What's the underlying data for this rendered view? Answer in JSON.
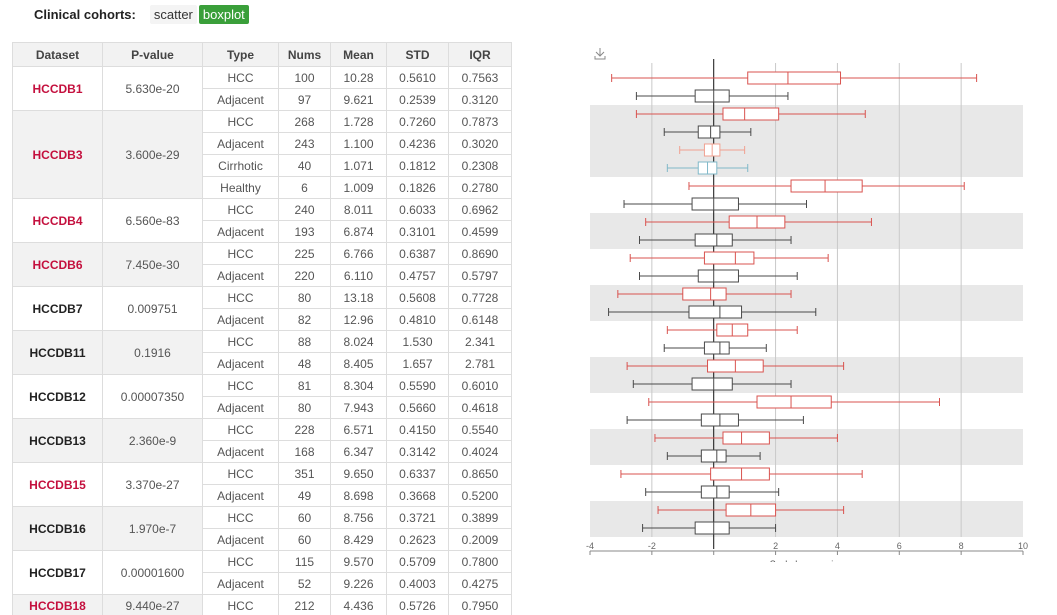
{
  "header": {
    "label": "Clinical cohorts:",
    "views": [
      {
        "label": "scatter",
        "active": false
      },
      {
        "label": "boxplot",
        "active": true
      }
    ]
  },
  "table": {
    "columns": [
      "Dataset",
      "P-value",
      "Type",
      "Nums",
      "Mean",
      "STD",
      "IQR"
    ],
    "groups": [
      {
        "dataset": "HCCDB1",
        "highlight": true,
        "pvalue": "5.630e-20",
        "rows": [
          {
            "type": "HCC",
            "nums": "100",
            "mean": "10.28",
            "std": "0.5610",
            "iqr": "0.7563"
          },
          {
            "type": "Adjacent",
            "nums": "97",
            "mean": "9.621",
            "std": "0.2539",
            "iqr": "0.3120"
          }
        ]
      },
      {
        "dataset": "HCCDB3",
        "highlight": true,
        "pvalue": "3.600e-29",
        "rows": [
          {
            "type": "HCC",
            "nums": "268",
            "mean": "1.728",
            "std": "0.7260",
            "iqr": "0.7873"
          },
          {
            "type": "Adjacent",
            "nums": "243",
            "mean": "1.100",
            "std": "0.4236",
            "iqr": "0.3020"
          },
          {
            "type": "Cirrhotic",
            "nums": "40",
            "mean": "1.071",
            "std": "0.1812",
            "iqr": "0.2308"
          },
          {
            "type": "Healthy",
            "nums": "6",
            "mean": "1.009",
            "std": "0.1826",
            "iqr": "0.2780"
          }
        ]
      },
      {
        "dataset": "HCCDB4",
        "highlight": true,
        "pvalue": "6.560e-83",
        "rows": [
          {
            "type": "HCC",
            "nums": "240",
            "mean": "8.011",
            "std": "0.6033",
            "iqr": "0.6962"
          },
          {
            "type": "Adjacent",
            "nums": "193",
            "mean": "6.874",
            "std": "0.3101",
            "iqr": "0.4599"
          }
        ]
      },
      {
        "dataset": "HCCDB6",
        "highlight": true,
        "pvalue": "7.450e-30",
        "rows": [
          {
            "type": "HCC",
            "nums": "225",
            "mean": "6.766",
            "std": "0.6387",
            "iqr": "0.8690"
          },
          {
            "type": "Adjacent",
            "nums": "220",
            "mean": "6.110",
            "std": "0.4757",
            "iqr": "0.5797"
          }
        ]
      },
      {
        "dataset": "HCCDB7",
        "highlight": false,
        "pvalue": "0.009751",
        "rows": [
          {
            "type": "HCC",
            "nums": "80",
            "mean": "13.18",
            "std": "0.5608",
            "iqr": "0.7728"
          },
          {
            "type": "Adjacent",
            "nums": "82",
            "mean": "12.96",
            "std": "0.4810",
            "iqr": "0.6148"
          }
        ]
      },
      {
        "dataset": "HCCDB11",
        "highlight": false,
        "pvalue": "0.1916",
        "rows": [
          {
            "type": "HCC",
            "nums": "88",
            "mean": "8.024",
            "std": "1.530",
            "iqr": "2.341"
          },
          {
            "type": "Adjacent",
            "nums": "48",
            "mean": "8.405",
            "std": "1.657",
            "iqr": "2.781"
          }
        ]
      },
      {
        "dataset": "HCCDB12",
        "highlight": false,
        "pvalue": "0.00007350",
        "rows": [
          {
            "type": "HCC",
            "nums": "81",
            "mean": "8.304",
            "std": "0.5590",
            "iqr": "0.6010"
          },
          {
            "type": "Adjacent",
            "nums": "80",
            "mean": "7.943",
            "std": "0.5660",
            "iqr": "0.4618"
          }
        ]
      },
      {
        "dataset": "HCCDB13",
        "highlight": false,
        "pvalue": "2.360e-9",
        "rows": [
          {
            "type": "HCC",
            "nums": "228",
            "mean": "6.571",
            "std": "0.4150",
            "iqr": "0.5540"
          },
          {
            "type": "Adjacent",
            "nums": "168",
            "mean": "6.347",
            "std": "0.3142",
            "iqr": "0.4024"
          }
        ]
      },
      {
        "dataset": "HCCDB15",
        "highlight": true,
        "pvalue": "3.370e-27",
        "rows": [
          {
            "type": "HCC",
            "nums": "351",
            "mean": "9.650",
            "std": "0.6337",
            "iqr": "0.8650"
          },
          {
            "type": "Adjacent",
            "nums": "49",
            "mean": "8.698",
            "std": "0.3668",
            "iqr": "0.5200"
          }
        ]
      },
      {
        "dataset": "HCCDB16",
        "highlight": false,
        "pvalue": "1.970e-7",
        "rows": [
          {
            "type": "HCC",
            "nums": "60",
            "mean": "8.756",
            "std": "0.3721",
            "iqr": "0.3899"
          },
          {
            "type": "Adjacent",
            "nums": "60",
            "mean": "8.429",
            "std": "0.2623",
            "iqr": "0.2009"
          }
        ]
      },
      {
        "dataset": "HCCDB17",
        "highlight": false,
        "pvalue": "0.00001600",
        "rows": [
          {
            "type": "HCC",
            "nums": "115",
            "mean": "9.570",
            "std": "0.5709",
            "iqr": "0.7800"
          },
          {
            "type": "Adjacent",
            "nums": "52",
            "mean": "9.226",
            "std": "0.4003",
            "iqr": "0.4275"
          }
        ]
      },
      {
        "dataset": "HCCDB18",
        "highlight": true,
        "pvalue": "9.440e-27",
        "rows": [
          {
            "type": "HCC",
            "nums": "212",
            "mean": "4.436",
            "std": "0.5726",
            "iqr": "0.7950"
          }
        ]
      }
    ]
  },
  "chart_data": {
    "type": "boxplot",
    "orientation": "horizontal",
    "xlabel": "Scaled expression",
    "xlim": [
      -4,
      10
    ],
    "xticks": [
      -4,
      -2,
      0,
      2,
      4,
      6,
      8,
      10
    ],
    "xtick_labels": [
      "-4",
      "-2",
      "",
      "2",
      "4",
      "6",
      "8",
      "10"
    ],
    "reference_line": 0,
    "colors": {
      "HCC": "#d9534f",
      "Adjacent": "#4a4a4a",
      "Cirrhotic": "#f0a090",
      "Healthy": "#80b8c8",
      "band": "#e8e8e8"
    },
    "boxes": [
      {
        "dataset": "HCCDB1",
        "type": "HCC",
        "min": -3.3,
        "q1": 1.1,
        "median": 2.4,
        "q3": 4.1,
        "max": 8.5
      },
      {
        "dataset": "HCCDB1",
        "type": "Adjacent",
        "min": -2.5,
        "q1": -0.6,
        "median": 0.0,
        "q3": 0.5,
        "max": 2.4
      },
      {
        "dataset": "HCCDB3",
        "type": "HCC",
        "min": -2.5,
        "q1": 0.3,
        "median": 1.0,
        "q3": 2.1,
        "max": 4.9
      },
      {
        "dataset": "HCCDB3",
        "type": "Adjacent",
        "min": -1.6,
        "q1": -0.5,
        "median": -0.1,
        "q3": 0.2,
        "max": 1.2
      },
      {
        "dataset": "HCCDB3",
        "type": "Cirrhotic",
        "min": -1.1,
        "q1": -0.3,
        "median": -0.05,
        "q3": 0.2,
        "max": 1.0
      },
      {
        "dataset": "HCCDB3",
        "type": "Healthy",
        "min": -1.5,
        "q1": -0.5,
        "median": -0.2,
        "q3": 0.1,
        "max": 1.1
      },
      {
        "dataset": "HCCDB4",
        "type": "HCC",
        "min": -0.8,
        "q1": 2.5,
        "median": 3.6,
        "q3": 4.8,
        "max": 8.1
      },
      {
        "dataset": "HCCDB4",
        "type": "Adjacent",
        "min": -2.9,
        "q1": -0.7,
        "median": 0.0,
        "q3": 0.8,
        "max": 3.0
      },
      {
        "dataset": "HCCDB6",
        "type": "HCC",
        "min": -2.2,
        "q1": 0.5,
        "median": 1.4,
        "q3": 2.3,
        "max": 5.1
      },
      {
        "dataset": "HCCDB6",
        "type": "Adjacent",
        "min": -2.4,
        "q1": -0.6,
        "median": 0.1,
        "q3": 0.6,
        "max": 2.5
      },
      {
        "dataset": "HCCDB7",
        "type": "HCC",
        "min": -2.7,
        "q1": -0.3,
        "median": 0.7,
        "q3": 1.3,
        "max": 3.7
      },
      {
        "dataset": "HCCDB7",
        "type": "Adjacent",
        "min": -2.4,
        "q1": -0.5,
        "median": 0.0,
        "q3": 0.8,
        "max": 2.7
      },
      {
        "dataset": "HCCDB11",
        "type": "HCC",
        "min": -3.1,
        "q1": -1.0,
        "median": -0.1,
        "q3": 0.4,
        "max": 2.5
      },
      {
        "dataset": "HCCDB11",
        "type": "Adjacent",
        "min": -3.4,
        "q1": -0.8,
        "median": 0.2,
        "q3": 0.9,
        "max": 3.3
      },
      {
        "dataset": "HCCDB12",
        "type": "HCC",
        "min": -1.5,
        "q1": 0.1,
        "median": 0.6,
        "q3": 1.1,
        "max": 2.7
      },
      {
        "dataset": "HCCDB12",
        "type": "Adjacent",
        "min": -1.6,
        "q1": -0.3,
        "median": 0.2,
        "q3": 0.5,
        "max": 1.7
      },
      {
        "dataset": "HCCDB13",
        "type": "HCC",
        "min": -2.8,
        "q1": -0.2,
        "median": 0.7,
        "q3": 1.6,
        "max": 4.2
      },
      {
        "dataset": "HCCDB13",
        "type": "Adjacent",
        "min": -2.6,
        "q1": -0.7,
        "median": 0.0,
        "q3": 0.6,
        "max": 2.5
      },
      {
        "dataset": "HCCDB15",
        "type": "HCC",
        "min": -2.1,
        "q1": 1.4,
        "median": 2.5,
        "q3": 3.8,
        "max": 7.3
      },
      {
        "dataset": "HCCDB15",
        "type": "Adjacent",
        "min": -2.8,
        "q1": -0.4,
        "median": 0.2,
        "q3": 0.8,
        "max": 2.9
      },
      {
        "dataset": "HCCDB16",
        "type": "HCC",
        "min": -1.9,
        "q1": 0.3,
        "median": 0.9,
        "q3": 1.8,
        "max": 4.0
      },
      {
        "dataset": "HCCDB16",
        "type": "Adjacent",
        "min": -1.5,
        "q1": -0.4,
        "median": 0.1,
        "q3": 0.4,
        "max": 1.5
      },
      {
        "dataset": "HCCDB17",
        "type": "HCC",
        "min": -3.0,
        "q1": -0.1,
        "median": 0.9,
        "q3": 1.8,
        "max": 4.8
      },
      {
        "dataset": "HCCDB17",
        "type": "Adjacent",
        "min": -2.2,
        "q1": -0.4,
        "median": 0.1,
        "q3": 0.5,
        "max": 2.1
      },
      {
        "dataset": "HCCDB18",
        "type": "HCC",
        "min": -1.8,
        "q1": 0.4,
        "median": 1.2,
        "q3": 2.0,
        "max": 4.2
      },
      {
        "dataset": "HCCDB18",
        "type": "Adjacent",
        "min": -2.3,
        "q1": -0.6,
        "median": 0.0,
        "q3": 0.5,
        "max": 2.0
      }
    ]
  }
}
